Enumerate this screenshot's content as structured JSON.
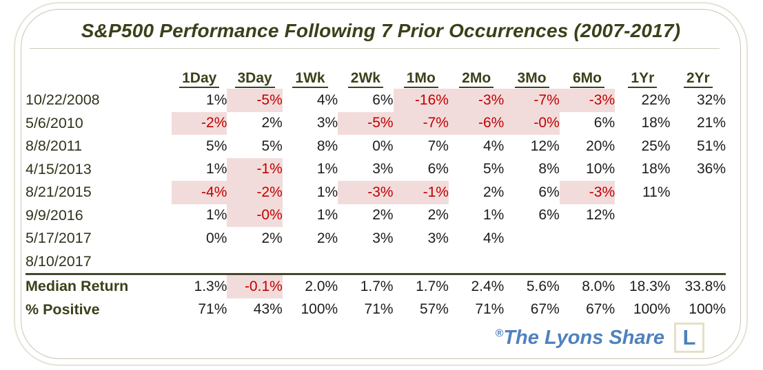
{
  "chart_data": {
    "type": "table",
    "title": "S&P500 Performance Following 7 Prior Occurrences (2007-2017)",
    "columns": [
      "1Day",
      "3Day",
      "1Wk",
      "2Wk",
      "1Mo",
      "2Mo",
      "3Mo",
      "6Mo",
      "1Yr",
      "2Yr"
    ],
    "rows": [
      {
        "label": "10/22/2008",
        "values": [
          "1%",
          "-5%",
          "4%",
          "6%",
          "-16%",
          "-3%",
          "-7%",
          "-3%",
          "22%",
          "32%"
        ]
      },
      {
        "label": "5/6/2010",
        "values": [
          "-2%",
          "2%",
          "3%",
          "-5%",
          "-7%",
          "-6%",
          "-0%",
          "6%",
          "18%",
          "21%"
        ]
      },
      {
        "label": "8/8/2011",
        "values": [
          "5%",
          "5%",
          "8%",
          "0%",
          "7%",
          "4%",
          "12%",
          "20%",
          "25%",
          "51%"
        ]
      },
      {
        "label": "4/15/2013",
        "values": [
          "1%",
          "-1%",
          "1%",
          "3%",
          "6%",
          "5%",
          "8%",
          "10%",
          "18%",
          "36%"
        ]
      },
      {
        "label": "8/21/2015",
        "values": [
          "-4%",
          "-2%",
          "1%",
          "-3%",
          "-1%",
          "2%",
          "6%",
          "-3%",
          "11%",
          ""
        ]
      },
      {
        "label": "9/9/2016",
        "values": [
          "1%",
          "-0%",
          "1%",
          "2%",
          "2%",
          "1%",
          "6%",
          "12%",
          "",
          ""
        ]
      },
      {
        "label": "5/17/2017",
        "values": [
          "0%",
          "2%",
          "2%",
          "3%",
          "3%",
          "4%",
          "",
          "",
          "",
          ""
        ]
      },
      {
        "label": "8/10/2017",
        "values": [
          "",
          "",
          "",
          "",
          "",
          "",
          "",
          "",
          "",
          ""
        ]
      }
    ],
    "summary_rows": [
      {
        "label": "Median Return",
        "values": [
          "1.3%",
          "-0.1%",
          "2.0%",
          "1.7%",
          "1.7%",
          "2.4%",
          "5.6%",
          "8.0%",
          "18.3%",
          "33.8%"
        ]
      },
      {
        "label": "% Positive",
        "values": [
          "71%",
          "43%",
          "100%",
          "71%",
          "57%",
          "71%",
          "67%",
          "67%",
          "100%",
          "100%"
        ]
      }
    ]
  },
  "watermark": {
    "reg": "®",
    "text": "The Lyons Share",
    "logo_letter": "L"
  },
  "colors": {
    "title_olive": "#3b4019",
    "value_black": "#1d1d1d",
    "negative_red": "#c00000",
    "negative_bg": "#f2dcdb",
    "brand_blue": "#4f81bd",
    "card_border_tan": "#c9c6b3",
    "thick_rule_olive": "#45452c"
  }
}
